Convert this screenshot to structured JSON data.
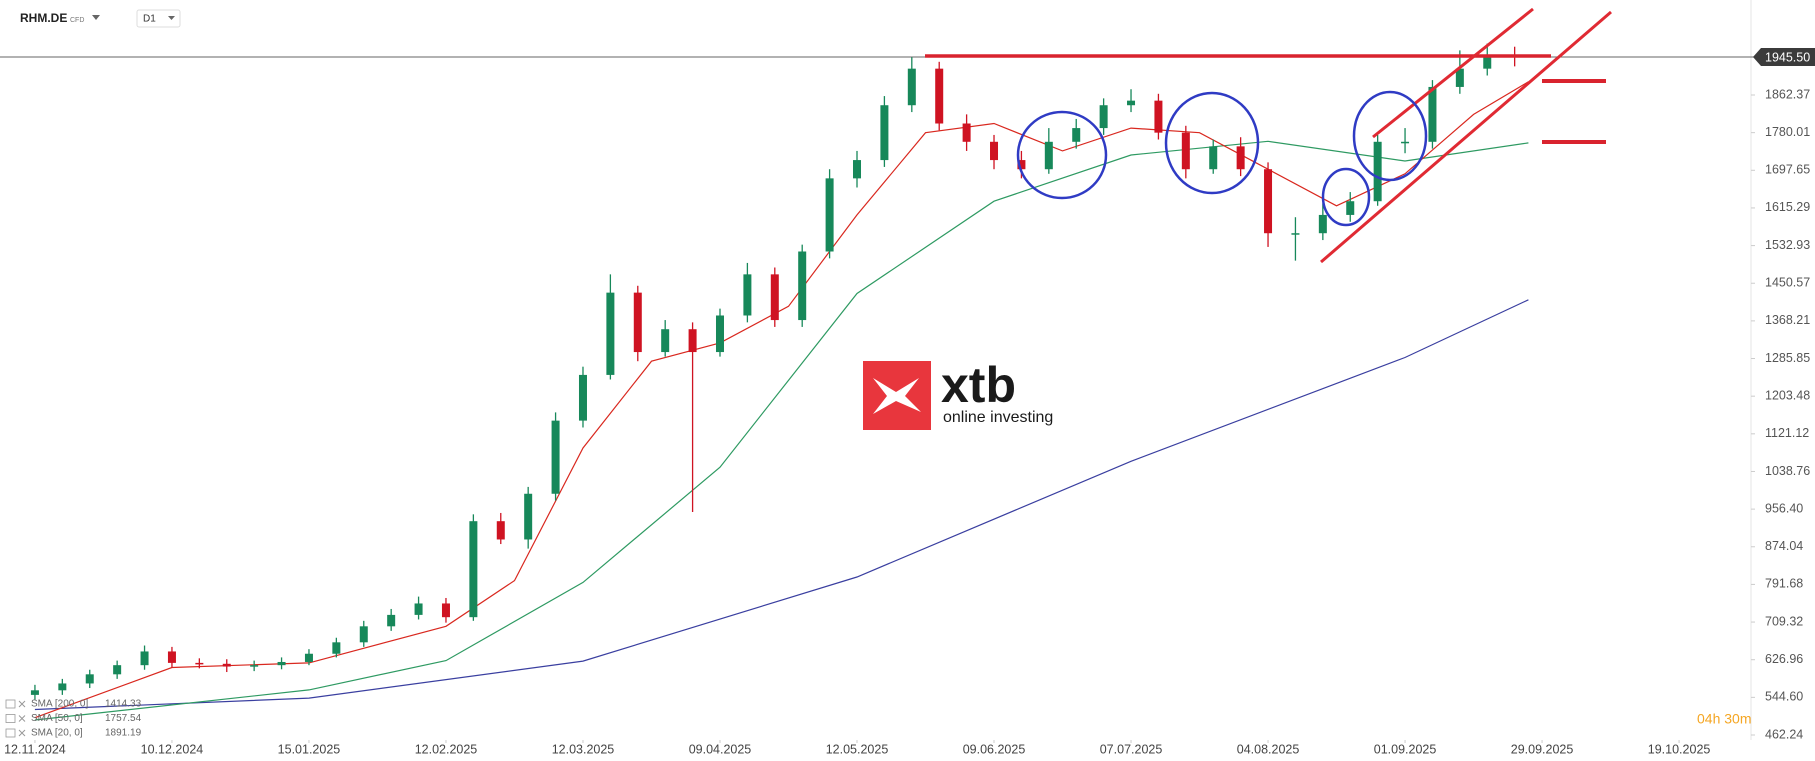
{
  "chart_data": {
    "type": "candlestick",
    "symbol": "RHM.DE",
    "instrument_type": "CFD",
    "timeframe": "D1",
    "timer": "04h 30m",
    "xlim": [
      -5.1,
      250.5
    ],
    "xticks": [
      {
        "value": 0,
        "label": "12.11.2024"
      },
      {
        "value": 20,
        "label": "10.12.2024"
      },
      {
        "value": 40,
        "label": "15.01.2025"
      },
      {
        "value": 60,
        "label": "12.02.2025"
      },
      {
        "value": 80,
        "label": "12.03.2025"
      },
      {
        "value": 100,
        "label": "09.04.2025"
      },
      {
        "value": 120,
        "label": "12.05.2025"
      },
      {
        "value": 140,
        "label": "09.06.2025"
      },
      {
        "value": 160,
        "label": "07.07.2025"
      },
      {
        "value": 180,
        "label": "04.08.2025"
      },
      {
        "value": 200,
        "label": "01.09.2025"
      },
      {
        "value": 220,
        "label": "29.09.2025"
      },
      {
        "value": 240,
        "label": "19.10.2025"
      }
    ],
    "ylim": [
      451.3,
      2070.2
    ],
    "yticks": [
      462.24,
      {
        "value": 544.6,
        "label": "544.60"
      },
      626.96,
      709.32,
      791.68,
      874.04,
      {
        "value": 956.4,
        "label": "956.40"
      },
      1038.76,
      1121.12,
      1203.48,
      1285.85,
      1368.21,
      1450.57,
      1532.93,
      1615.29,
      1697.65,
      1780.01,
      1862.37
    ],
    "last_price": {
      "value": 1945.5,
      "label": "1945.50"
    },
    "up_color": "#17885a",
    "down_color": "#cf1322",
    "candles": {
      "x": [
        0,
        4,
        8,
        12,
        16,
        20,
        24,
        28,
        32,
        36,
        40,
        44,
        48,
        52,
        56,
        60,
        64,
        68,
        72,
        76,
        80,
        84,
        88,
        92,
        96,
        100,
        104,
        108,
        112,
        116,
        120,
        124,
        128,
        132,
        136,
        140,
        144,
        148,
        152,
        156,
        160,
        164,
        168,
        172,
        176,
        180,
        184,
        188,
        192,
        196,
        200,
        204,
        208,
        212,
        216
      ],
      "open": [
        550,
        560,
        575,
        595,
        615,
        645,
        620,
        618,
        612,
        615,
        622,
        640,
        665,
        700,
        725,
        750,
        720,
        930,
        890,
        990,
        1150,
        1250,
        1430,
        1300,
        1350,
        1300,
        1380,
        1470,
        1370,
        1520,
        1680,
        1720,
        1840,
        1920,
        1800,
        1760,
        1720,
        1700,
        1760,
        1790,
        1840,
        1850,
        1780,
        1700,
        1750,
        1700,
        1560,
        1560,
        1600,
        1630,
        1760,
        1760,
        1880,
        1920,
        1950
      ],
      "high": [
        572,
        585,
        605,
        625,
        658,
        655,
        630,
        628,
        625,
        632,
        650,
        675,
        712,
        738,
        765,
        762,
        945,
        948,
        1005,
        1168,
        1268,
        1470,
        1445,
        1370,
        1365,
        1395,
        1495,
        1485,
        1535,
        1700,
        1740,
        1860,
        1945,
        1935,
        1820,
        1775,
        1740,
        1790,
        1810,
        1855,
        1875,
        1865,
        1795,
        1765,
        1770,
        1715,
        1595,
        1625,
        1650,
        1775,
        1790,
        1895,
        1960,
        1975,
        1968
      ],
      "low": [
        540,
        550,
        565,
        585,
        605,
        610,
        608,
        600,
        602,
        606,
        615,
        632,
        655,
        690,
        715,
        708,
        712,
        880,
        870,
        975,
        1135,
        1240,
        1280,
        1290,
        950,
        1290,
        1365,
        1355,
        1355,
        1505,
        1660,
        1705,
        1825,
        1785,
        1740,
        1700,
        1680,
        1690,
        1745,
        1775,
        1825,
        1765,
        1680,
        1690,
        1685,
        1530,
        1500,
        1545,
        1585,
        1620,
        1735,
        1745,
        1865,
        1905,
        1925
      ],
      "close": [
        560,
        575,
        595,
        615,
        645,
        620,
        618,
        612,
        615,
        622,
        640,
        665,
        700,
        725,
        750,
        720,
        930,
        890,
        990,
        1150,
        1250,
        1430,
        1300,
        1350,
        1300,
        1380,
        1470,
        1370,
        1520,
        1680,
        1720,
        1840,
        1920,
        1800,
        1760,
        1720,
        1700,
        1760,
        1790,
        1840,
        1850,
        1780,
        1700,
        1750,
        1700,
        1560,
        1560,
        1600,
        1630,
        1760,
        1760,
        1880,
        1920,
        1950,
        1945.5
      ]
    },
    "series": [
      {
        "name": "SMA [200, 0]",
        "legend_value": 1414.33,
        "color": "#3a3fa0",
        "x": [
          0,
          40,
          80,
          120,
          160,
          200,
          218
        ],
        "values": [
          518,
          543,
          624,
          808,
          1061,
          1288,
          1414.33
        ]
      },
      {
        "name": "SMA [50, 0]",
        "legend_value": 1757.54,
        "color": "#2e9a62",
        "x": [
          0,
          40,
          60,
          80,
          100,
          120,
          140,
          160,
          180,
          200,
          218
        ],
        "values": [
          495,
          561,
          625,
          796,
          1048,
          1428,
          1630,
          1731,
          1761,
          1718,
          1757.54
        ]
      },
      {
        "name": "SMA [20, 0]",
        "legend_value": 1891.19,
        "color": "#d9281f",
        "x": [
          0,
          20,
          40,
          60,
          70,
          80,
          90,
          100,
          110,
          120,
          130,
          140,
          150,
          160,
          170,
          180,
          190,
          200,
          210,
          218
        ],
        "values": [
          500,
          610,
          620,
          700,
          800,
          1090,
          1280,
          1320,
          1400,
          1600,
          1780,
          1800,
          1740,
          1790,
          1780,
          1700,
          1620,
          1690,
          1820,
          1891.19
        ]
      }
    ]
  }
}
